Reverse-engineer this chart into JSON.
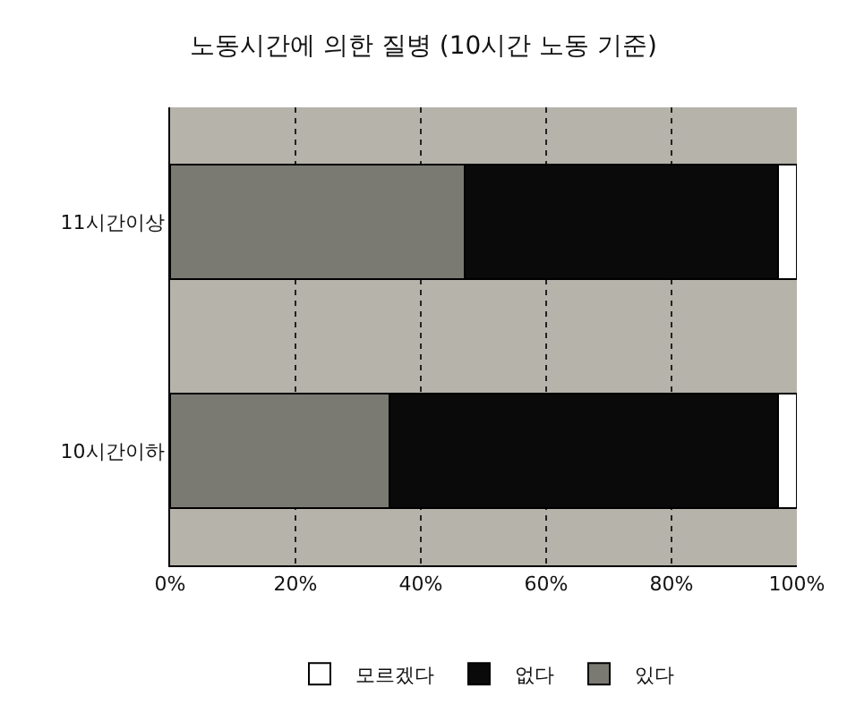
{
  "chart_data": {
    "type": "bar",
    "title": "노동시간에 의한 질병 (10시간 노동 기준)",
    "orientation": "horizontal",
    "stacked": true,
    "categories": [
      "11시간이상",
      "10시간이하"
    ],
    "series": [
      {
        "name": "있다",
        "color": "#7a7a72",
        "values": [
          47,
          35
        ]
      },
      {
        "name": "없다",
        "color": "#0a0a0a",
        "values": [
          50,
          62
        ]
      },
      {
        "name": "모르겠다",
        "color": "#ffffff",
        "values": [
          3,
          3
        ]
      }
    ],
    "xlim": [
      0,
      100
    ],
    "xticks": [
      {
        "value": 0,
        "label": "0%"
      },
      {
        "value": 20,
        "label": "20%"
      },
      {
        "value": 40,
        "label": "40%"
      },
      {
        "value": 60,
        "label": "60%"
      },
      {
        "value": 80,
        "label": "80%"
      },
      {
        "value": 100,
        "label": "100%"
      }
    ],
    "grid": "x",
    "legend": "bottom"
  }
}
